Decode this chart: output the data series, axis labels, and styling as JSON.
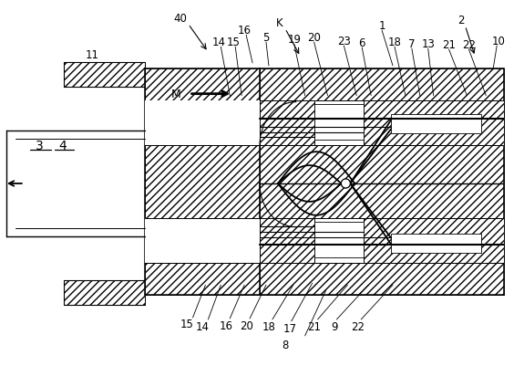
{
  "bg_color": "#ffffff",
  "line_color": "#000000",
  "figsize": [
    5.75,
    4.02
  ],
  "dpi": 100
}
